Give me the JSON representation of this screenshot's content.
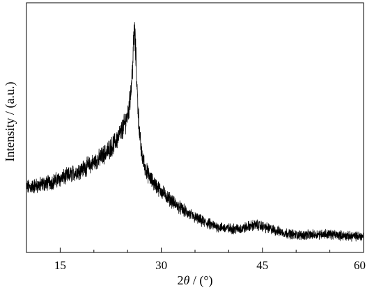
{
  "chart_data": {
    "type": "line",
    "title": "",
    "xlabel_prefix": "2",
    "xlabel_symbol": "θ",
    "xlabel_suffix": " / (°)",
    "ylabel": "Intensity / (a.u.)",
    "xlim": [
      10,
      60
    ],
    "ylim": [
      0,
      100
    ],
    "x_ticks": [
      15,
      30,
      45,
      60
    ],
    "x_minor_ticks": [
      20,
      25,
      35,
      40,
      50,
      55
    ],
    "grid": false,
    "legend": "none",
    "line_color": "#000000",
    "series": [
      {
        "x": [
          10,
          12,
          14,
          16,
          18,
          20,
          21,
          22,
          23,
          24,
          24.5,
          25,
          25.3,
          25.6,
          25.8,
          26,
          26.2,
          26.4,
          26.6,
          26.8,
          27,
          27.3,
          27.6,
          28,
          28.5,
          29,
          30,
          31,
          32,
          33,
          34,
          35,
          36,
          38,
          40,
          42,
          43,
          44,
          45,
          46,
          48,
          50,
          52,
          54,
          56,
          58,
          60
        ],
        "y": [
          26,
          27,
          28.5,
          30.5,
          33,
          36,
          38,
          40.5,
          43.5,
          48,
          51,
          55,
          60,
          68,
          78,
          90,
          80,
          66,
          55,
          47,
          41,
          37,
          34,
          31.5,
          29,
          27.5,
          24.5,
          22,
          19.5,
          17.5,
          15.5,
          14,
          12.5,
          10.5,
          9.5,
          9.5,
          10.5,
          11,
          10.5,
          9.5,
          8,
          7,
          7,
          7.5,
          7,
          6.5,
          6.5
        ]
      }
    ]
  }
}
